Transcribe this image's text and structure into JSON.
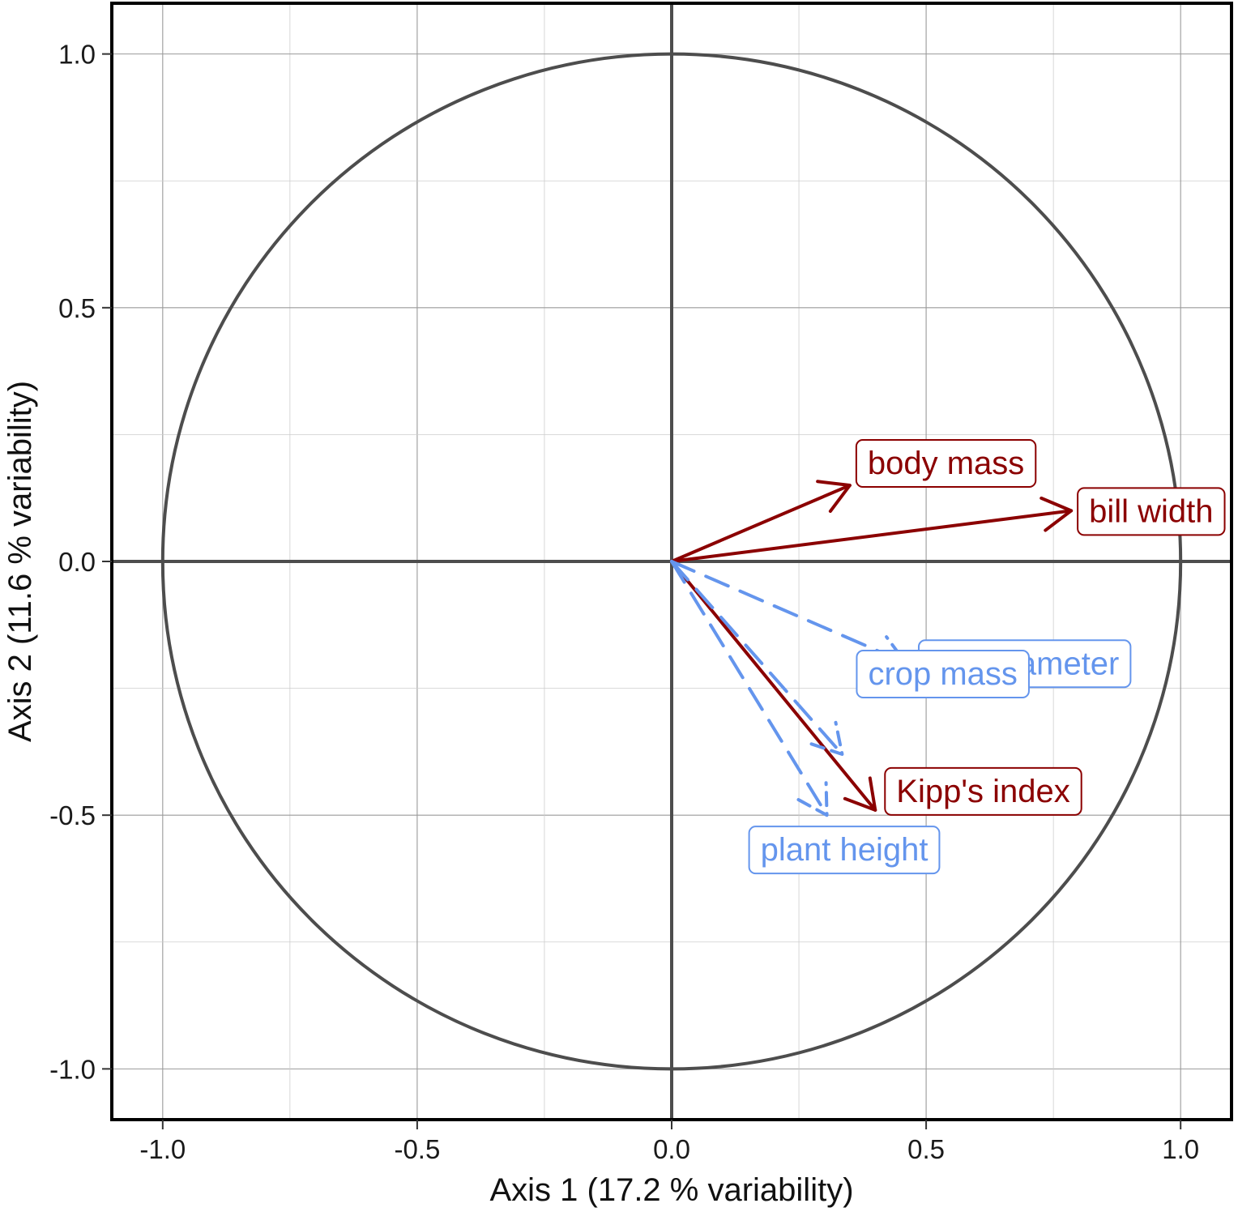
{
  "chart_data": {
    "type": "correlation-circle",
    "title": "",
    "xlabel": "Axis 1 (17.2 % variability)",
    "ylabel": "Axis 2 (11.6 % variability)",
    "xlim": [
      -1.1,
      1.1
    ],
    "ylim": [
      -1.1,
      1.1
    ],
    "xticks": [
      "-1.0",
      "-0.5",
      "0.0",
      "0.5",
      "1.0"
    ],
    "yticks": [
      "1.0",
      "0.5",
      "0.0",
      "-0.5",
      "-1.0"
    ],
    "grid": true,
    "colors": {
      "animal": "#8b0000",
      "plant": "#6495ed"
    },
    "series": [
      {
        "group": "animal",
        "line": "solid",
        "vectors": [
          {
            "label": "body mass",
            "x": 0.35,
            "y": 0.15
          },
          {
            "label": "bill width",
            "x": 0.785,
            "y": 0.1
          },
          {
            "label": "Kipp's index",
            "x": 0.4,
            "y": -0.49
          }
        ]
      },
      {
        "group": "plant",
        "line": "dashed",
        "vectors": [
          {
            "label": "fruit diameter",
            "x": 0.46,
            "y": -0.2
          },
          {
            "label": "crop mass",
            "x": 0.335,
            "y": -0.38
          },
          {
            "label": "plant height",
            "x": 0.305,
            "y": -0.5
          }
        ]
      }
    ]
  }
}
